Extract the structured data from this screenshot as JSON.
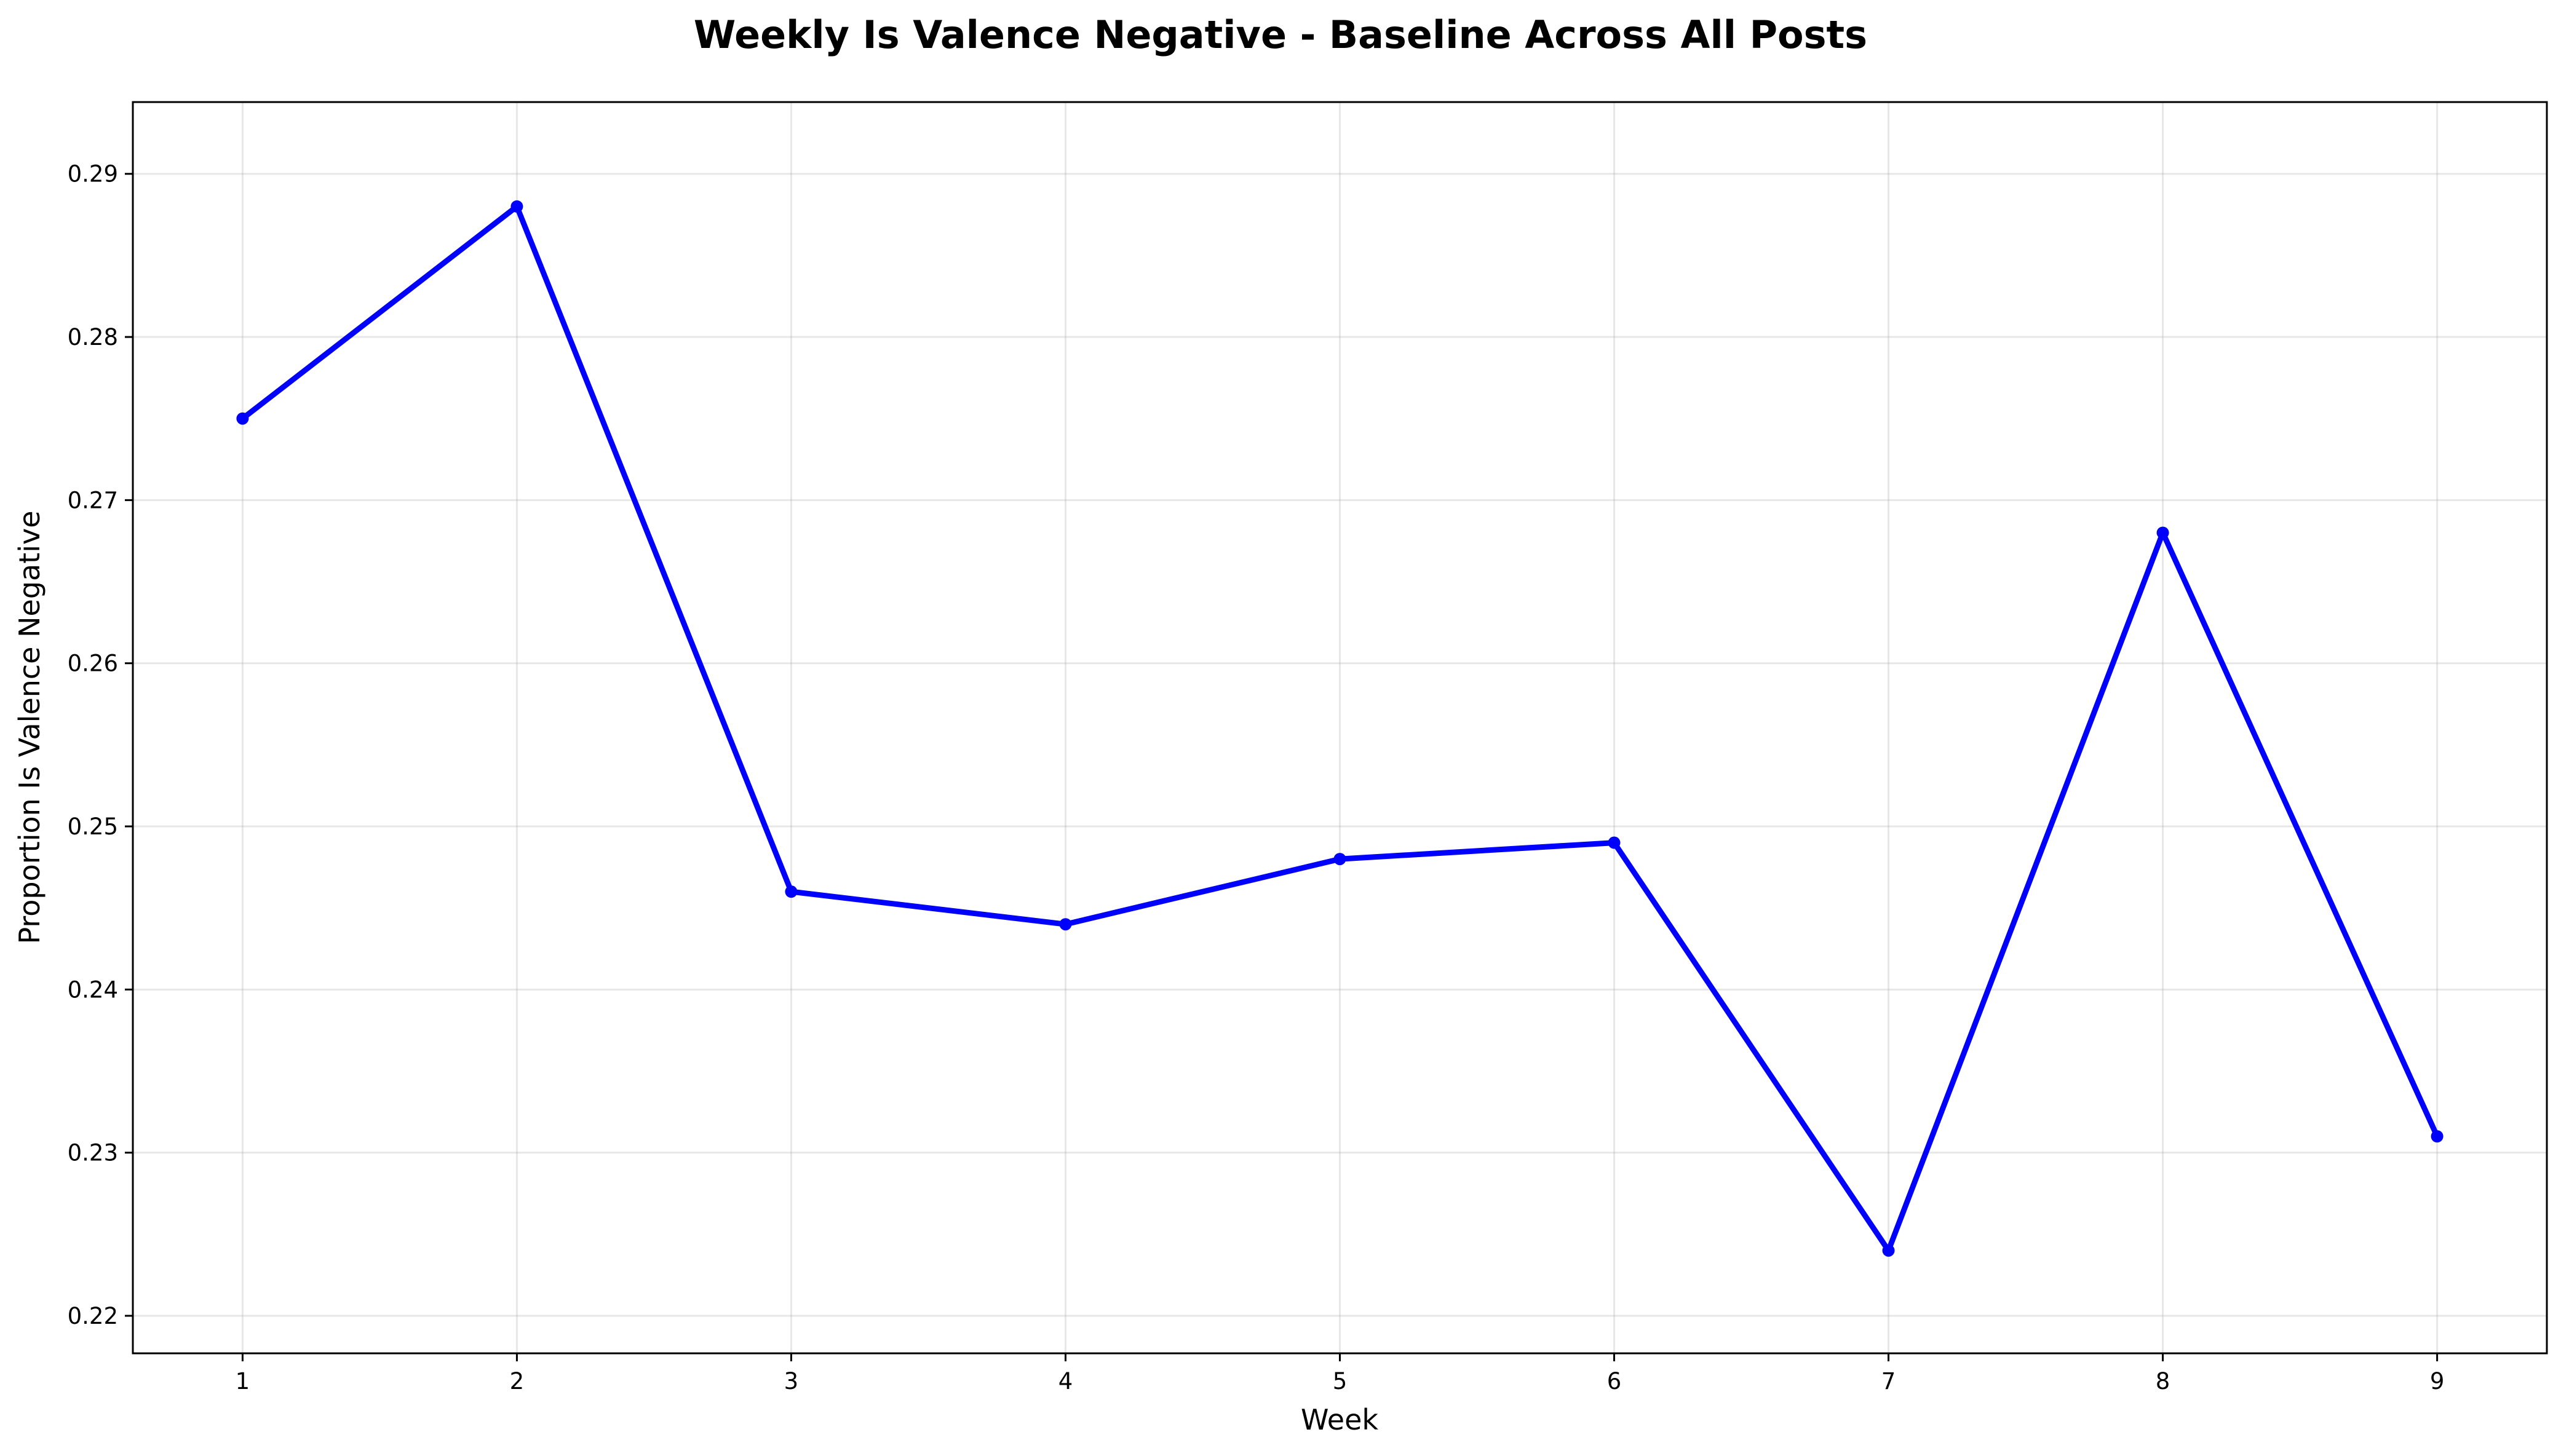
{
  "chart_data": {
    "type": "line",
    "title": "Weekly Is Valence Negative - Baseline Across All Posts",
    "xlabel": "Week",
    "ylabel": "Proportion Is Valence Negative",
    "x": [
      1,
      2,
      3,
      4,
      5,
      6,
      7,
      8,
      9
    ],
    "x_ticks": [
      "1",
      "2",
      "3",
      "4",
      "5",
      "6",
      "7",
      "8",
      "9"
    ],
    "xlim": [
      0.6,
      9.4
    ],
    "y_ticks": [
      "0.22",
      "0.23",
      "0.24",
      "0.25",
      "0.26",
      "0.27",
      "0.28",
      "0.29"
    ],
    "ylim": [
      0.2177,
      0.2944
    ],
    "grid": true,
    "series": [
      {
        "values": [
          0.275,
          0.288,
          0.246,
          0.244,
          0.248,
          0.249,
          0.224,
          0.268,
          0.231
        ],
        "color": "#0000ff",
        "marker": "circle"
      }
    ]
  }
}
